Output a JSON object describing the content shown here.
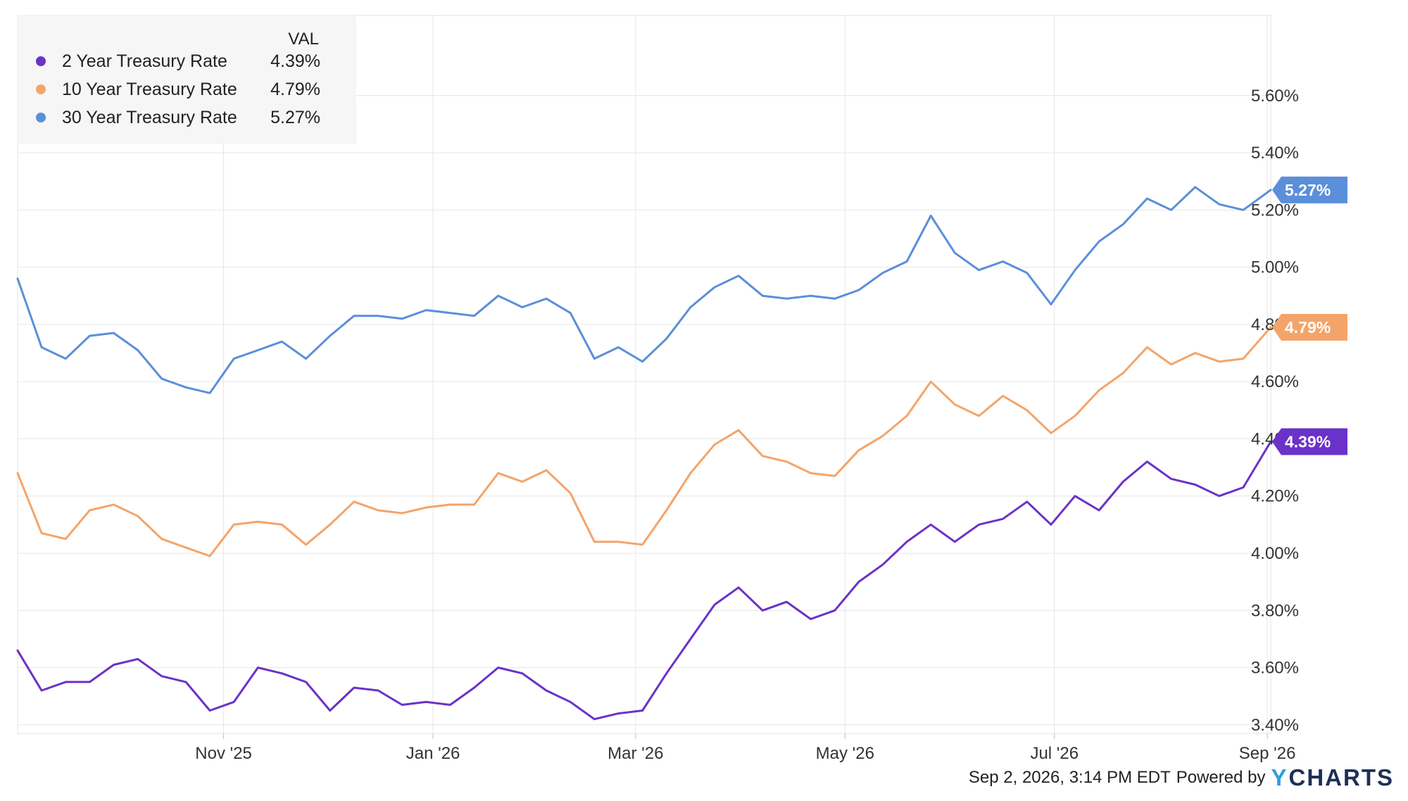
{
  "chart_data": {
    "type": "line",
    "legend_header": "VAL",
    "x_ticks": [
      "Nov '25",
      "Jan '26",
      "Mar '26",
      "May '26",
      "Jul '26",
      "Sep '26"
    ],
    "y_ticks": [
      "3.40%",
      "3.60%",
      "3.80%",
      "4.00%",
      "4.20%",
      "4.40%",
      "4.60%",
      "4.80%",
      "5.00%",
      "5.20%",
      "5.40%",
      "5.60%"
    ],
    "ylim": [
      3.37,
      5.88
    ],
    "xlim": [
      "2025-09-02",
      "2026-09-02"
    ],
    "y_format": "percent",
    "grid": true,
    "legend_position": "top-left",
    "series": [
      {
        "name": "2 Year Treasury Rate",
        "last_value": "4.39%",
        "color": "#6a32c8",
        "points": [
          [
            "2025-09-02",
            3.66
          ],
          [
            "2025-09-09",
            3.52
          ],
          [
            "2025-09-16",
            3.55
          ],
          [
            "2025-09-23",
            3.55
          ],
          [
            "2025-09-30",
            3.61
          ],
          [
            "2025-10-07",
            3.63
          ],
          [
            "2025-10-14",
            3.57
          ],
          [
            "2025-10-21",
            3.55
          ],
          [
            "2025-10-28",
            3.45
          ],
          [
            "2025-11-04",
            3.48
          ],
          [
            "2025-11-11",
            3.6
          ],
          [
            "2025-11-18",
            3.58
          ],
          [
            "2025-11-25",
            3.55
          ],
          [
            "2025-12-02",
            3.45
          ],
          [
            "2025-12-09",
            3.53
          ],
          [
            "2025-12-16",
            3.52
          ],
          [
            "2025-12-23",
            3.47
          ],
          [
            "2025-12-30",
            3.48
          ],
          [
            "2026-01-06",
            3.47
          ],
          [
            "2026-01-13",
            3.53
          ],
          [
            "2026-01-20",
            3.6
          ],
          [
            "2026-01-27",
            3.58
          ],
          [
            "2026-02-03",
            3.52
          ],
          [
            "2026-02-10",
            3.48
          ],
          [
            "2026-02-17",
            3.42
          ],
          [
            "2026-02-24",
            3.44
          ],
          [
            "2026-03-03",
            3.45
          ],
          [
            "2026-03-10",
            3.58
          ],
          [
            "2026-03-17",
            3.7
          ],
          [
            "2026-03-24",
            3.82
          ],
          [
            "2026-03-31",
            3.88
          ],
          [
            "2026-04-07",
            3.8
          ],
          [
            "2026-04-14",
            3.83
          ],
          [
            "2026-04-21",
            3.77
          ],
          [
            "2026-04-28",
            3.8
          ],
          [
            "2026-05-05",
            3.9
          ],
          [
            "2026-05-12",
            3.96
          ],
          [
            "2026-05-19",
            4.04
          ],
          [
            "2026-05-26",
            4.1
          ],
          [
            "2026-06-02",
            4.04
          ],
          [
            "2026-06-09",
            4.1
          ],
          [
            "2026-06-16",
            4.12
          ],
          [
            "2026-06-23",
            4.18
          ],
          [
            "2026-06-30",
            4.1
          ],
          [
            "2026-07-07",
            4.2
          ],
          [
            "2026-07-14",
            4.15
          ],
          [
            "2026-07-21",
            4.25
          ],
          [
            "2026-07-28",
            4.32
          ],
          [
            "2026-08-04",
            4.26
          ],
          [
            "2026-08-11",
            4.24
          ],
          [
            "2026-08-18",
            4.2
          ],
          [
            "2026-08-25",
            4.23
          ],
          [
            "2026-09-02",
            4.39
          ]
        ]
      },
      {
        "name": "10 Year Treasury Rate",
        "last_value": "4.79%",
        "color": "#f4a469",
        "points": [
          [
            "2025-09-02",
            4.28
          ],
          [
            "2025-09-09",
            4.07
          ],
          [
            "2025-09-16",
            4.05
          ],
          [
            "2025-09-23",
            4.15
          ],
          [
            "2025-09-30",
            4.17
          ],
          [
            "2025-10-07",
            4.13
          ],
          [
            "2025-10-14",
            4.05
          ],
          [
            "2025-10-21",
            4.02
          ],
          [
            "2025-10-28",
            3.99
          ],
          [
            "2025-11-04",
            4.1
          ],
          [
            "2025-11-11",
            4.11
          ],
          [
            "2025-11-18",
            4.1
          ],
          [
            "2025-11-25",
            4.03
          ],
          [
            "2025-12-02",
            4.1
          ],
          [
            "2025-12-09",
            4.18
          ],
          [
            "2025-12-16",
            4.15
          ],
          [
            "2025-12-23",
            4.14
          ],
          [
            "2025-12-30",
            4.16
          ],
          [
            "2026-01-06",
            4.17
          ],
          [
            "2026-01-13",
            4.17
          ],
          [
            "2026-01-20",
            4.28
          ],
          [
            "2026-01-27",
            4.25
          ],
          [
            "2026-02-03",
            4.29
          ],
          [
            "2026-02-10",
            4.21
          ],
          [
            "2026-02-17",
            4.04
          ],
          [
            "2026-02-24",
            4.04
          ],
          [
            "2026-03-03",
            4.03
          ],
          [
            "2026-03-10",
            4.15
          ],
          [
            "2026-03-17",
            4.28
          ],
          [
            "2026-03-24",
            4.38
          ],
          [
            "2026-03-31",
            4.43
          ],
          [
            "2026-04-07",
            4.34
          ],
          [
            "2026-04-14",
            4.32
          ],
          [
            "2026-04-21",
            4.28
          ],
          [
            "2026-04-28",
            4.27
          ],
          [
            "2026-05-05",
            4.36
          ],
          [
            "2026-05-12",
            4.41
          ],
          [
            "2026-05-19",
            4.48
          ],
          [
            "2026-05-26",
            4.6
          ],
          [
            "2026-06-02",
            4.52
          ],
          [
            "2026-06-09",
            4.48
          ],
          [
            "2026-06-16",
            4.55
          ],
          [
            "2026-06-23",
            4.5
          ],
          [
            "2026-06-30",
            4.42
          ],
          [
            "2026-07-07",
            4.48
          ],
          [
            "2026-07-14",
            4.57
          ],
          [
            "2026-07-21",
            4.63
          ],
          [
            "2026-07-28",
            4.72
          ],
          [
            "2026-08-04",
            4.66
          ],
          [
            "2026-08-11",
            4.7
          ],
          [
            "2026-08-18",
            4.67
          ],
          [
            "2026-08-25",
            4.68
          ],
          [
            "2026-09-02",
            4.79
          ]
        ]
      },
      {
        "name": "30 Year Treasury Rate",
        "last_value": "5.27%",
        "color": "#5b8fd9",
        "points": [
          [
            "2025-09-02",
            4.96
          ],
          [
            "2025-09-09",
            4.72
          ],
          [
            "2025-09-16",
            4.68
          ],
          [
            "2025-09-23",
            4.76
          ],
          [
            "2025-09-30",
            4.77
          ],
          [
            "2025-10-07",
            4.71
          ],
          [
            "2025-10-14",
            4.61
          ],
          [
            "2025-10-21",
            4.58
          ],
          [
            "2025-10-28",
            4.56
          ],
          [
            "2025-11-04",
            4.68
          ],
          [
            "2025-11-11",
            4.71
          ],
          [
            "2025-11-18",
            4.74
          ],
          [
            "2025-11-25",
            4.68
          ],
          [
            "2025-12-02",
            4.76
          ],
          [
            "2025-12-09",
            4.83
          ],
          [
            "2025-12-16",
            4.83
          ],
          [
            "2025-12-23",
            4.82
          ],
          [
            "2025-12-30",
            4.85
          ],
          [
            "2026-01-06",
            4.84
          ],
          [
            "2026-01-13",
            4.83
          ],
          [
            "2026-01-20",
            4.9
          ],
          [
            "2026-01-27",
            4.86
          ],
          [
            "2026-02-03",
            4.89
          ],
          [
            "2026-02-10",
            4.84
          ],
          [
            "2026-02-17",
            4.68
          ],
          [
            "2026-02-24",
            4.72
          ],
          [
            "2026-03-03",
            4.67
          ],
          [
            "2026-03-10",
            4.75
          ],
          [
            "2026-03-17",
            4.86
          ],
          [
            "2026-03-24",
            4.93
          ],
          [
            "2026-03-31",
            4.97
          ],
          [
            "2026-04-07",
            4.9
          ],
          [
            "2026-04-14",
            4.89
          ],
          [
            "2026-04-21",
            4.9
          ],
          [
            "2026-04-28",
            4.89
          ],
          [
            "2026-05-05",
            4.92
          ],
          [
            "2026-05-12",
            4.98
          ],
          [
            "2026-05-19",
            5.02
          ],
          [
            "2026-05-26",
            5.18
          ],
          [
            "2026-06-02",
            5.05
          ],
          [
            "2026-06-09",
            4.99
          ],
          [
            "2026-06-16",
            5.02
          ],
          [
            "2026-06-23",
            4.98
          ],
          [
            "2026-06-30",
            4.87
          ],
          [
            "2026-07-07",
            4.99
          ],
          [
            "2026-07-14",
            5.09
          ],
          [
            "2026-07-21",
            5.15
          ],
          [
            "2026-07-28",
            5.24
          ],
          [
            "2026-08-04",
            5.2
          ],
          [
            "2026-08-11",
            5.28
          ],
          [
            "2026-08-18",
            5.22
          ],
          [
            "2026-08-25",
            5.2
          ],
          [
            "2026-09-02",
            5.27
          ]
        ]
      }
    ]
  },
  "footer": {
    "timestamp": "Sep 2, 2026, 3:14 PM EDT",
    "powered_by": "Powered by",
    "brand_y": "Y",
    "brand_rest": "CHARTS"
  }
}
